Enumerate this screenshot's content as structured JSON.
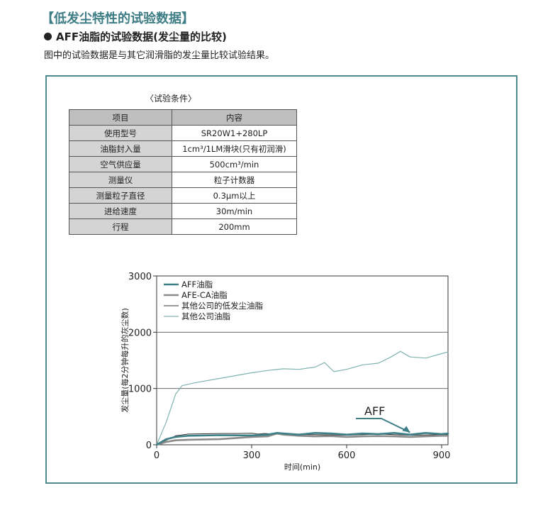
{
  "header": {
    "title": "【低发尘特性的试验数据】",
    "subtitle": "AFF油脂的试验数据(发尘量的比较)",
    "intro": "图中的试验数据是与其它润滑脂的发尘量比较试验结果。"
  },
  "conditions": {
    "title": "〈试验条件〉",
    "header": {
      "item": "项目",
      "content": "内容"
    },
    "rows": [
      {
        "item": "使用型号",
        "content": "SR20W1+280LP"
      },
      {
        "item": "油脂封入量",
        "content": "1cm³/1LM滑块(只有初润滑)"
      },
      {
        "item": "空气供应量",
        "content": "500cm³/min"
      },
      {
        "item": "测量仪",
        "content": "粒子计数器"
      },
      {
        "item": "测量粒子直径",
        "content": "0.3µm以上"
      },
      {
        "item": "进给速度",
        "content": "30m/min"
      },
      {
        "item": "行程",
        "content": "200mm"
      }
    ]
  },
  "chart_data": {
    "type": "line",
    "xlabel": "时间(min)",
    "ylabel": "发尘量(每2分钟每升的灰尘数)",
    "xlim": [
      0,
      920
    ],
    "ylim": [
      0,
      3000
    ],
    "xticks": [
      0,
      300,
      600,
      900
    ],
    "yticks": [
      0,
      1000,
      2000,
      3000
    ],
    "grid_y": [
      1000,
      2000
    ],
    "legend_position": "top-left",
    "annotation": {
      "text": "AFF",
      "arrow_to": {
        "x": 800,
        "y": 220
      }
    },
    "series": [
      {
        "name": "其他公司油脂",
        "color": "#7fb3b0",
        "width": 1.2,
        "x": [
          0,
          30,
          60,
          80,
          120,
          200,
          300,
          350,
          400,
          450,
          500,
          530,
          560,
          600,
          650,
          700,
          740,
          770,
          800,
          850,
          900,
          920
        ],
        "y": [
          0,
          400,
          900,
          1050,
          1100,
          1180,
          1280,
          1320,
          1350,
          1340,
          1380,
          1460,
          1300,
          1340,
          1420,
          1450,
          1560,
          1660,
          1560,
          1540,
          1620,
          1650
        ]
      },
      {
        "name": "其他公司的低发尘油脂",
        "color": "#333333",
        "width": 1.0,
        "x": [
          0,
          30,
          60,
          100,
          200,
          250,
          300,
          320,
          340,
          370,
          400,
          450,
          500,
          550,
          600,
          650,
          700,
          750,
          800,
          850,
          900,
          920
        ],
        "y": [
          0,
          80,
          160,
          190,
          200,
          200,
          205,
          190,
          200,
          190,
          185,
          180,
          180,
          175,
          170,
          180,
          190,
          180,
          170,
          175,
          180,
          180
        ]
      },
      {
        "name": "AFE-CA油脂",
        "color": "#8a8a8a",
        "width": 2.6,
        "x": [
          0,
          30,
          60,
          100,
          200,
          300,
          350,
          380,
          400,
          450,
          500,
          550,
          600,
          650,
          700,
          750,
          800,
          850,
          900,
          920
        ],
        "y": [
          0,
          50,
          80,
          90,
          100,
          140,
          150,
          200,
          180,
          160,
          150,
          155,
          140,
          150,
          155,
          150,
          140,
          150,
          160,
          160
        ]
      },
      {
        "name": "AFF油脂",
        "color": "#3f7f88",
        "width": 2.6,
        "x": [
          0,
          30,
          60,
          100,
          200,
          300,
          350,
          380,
          400,
          450,
          500,
          550,
          600,
          650,
          700,
          750,
          800,
          850,
          900,
          920
        ],
        "y": [
          0,
          100,
          140,
          160,
          170,
          165,
          180,
          210,
          200,
          180,
          210,
          200,
          180,
          200,
          190,
          210,
          180,
          210,
          190,
          200
        ]
      }
    ],
    "legend_order": [
      "AFF油脂",
      "AFE-CA油脂",
      "其他公司的低发尘油脂",
      "其他公司油脂"
    ]
  }
}
